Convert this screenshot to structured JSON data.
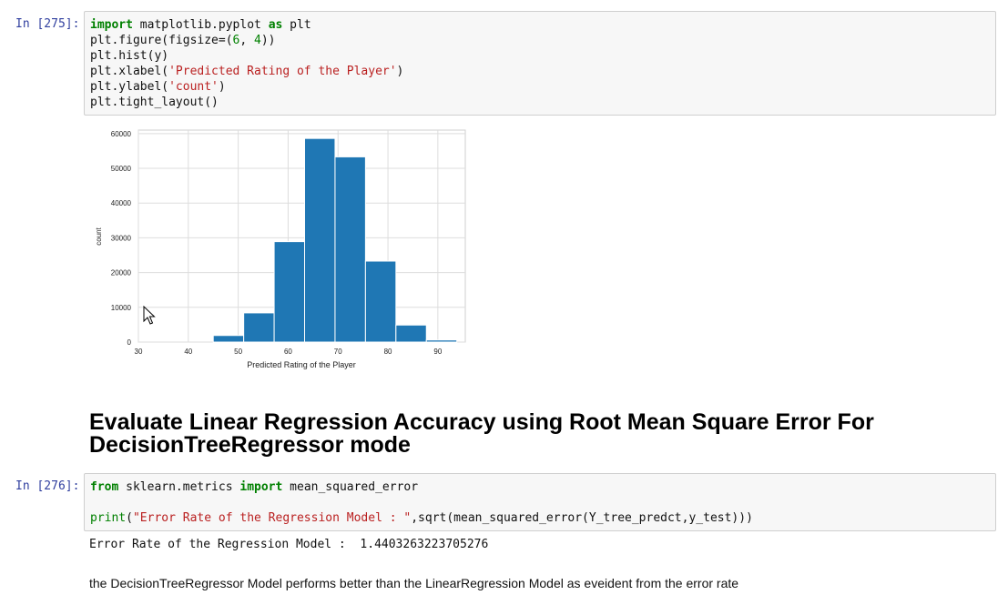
{
  "cells": {
    "cell1": {
      "prompt": "In [275]:",
      "line1": {
        "kw1": "import",
        "mid": " matplotlib.pyplot ",
        "kw2": "as",
        "rest": " plt"
      },
      "line2": {
        "pre": "plt.figure(figsize=(",
        "n1": "6",
        "sep": ", ",
        "n2": "4",
        "post": "))"
      },
      "line3": "plt.hist(y)",
      "line4": {
        "pre": "plt.xlabel(",
        "str": "'Predicted Rating of the Player'",
        "post": ")"
      },
      "line5": {
        "pre": "plt.ylabel(",
        "str": "'count'",
        "post": ")"
      },
      "line6": "plt.tight_layout()"
    },
    "heading": {
      "line1": "Evaluate Linear Regression Accuracy using Root Mean Square Error For",
      "line2": "DecisionTreeRegressor mode"
    },
    "cell2": {
      "prompt": "In [276]:",
      "line1": {
        "kw1": "from",
        "mid": " sklearn.metrics ",
        "kw2": "import",
        "rest": " mean_squared_error"
      },
      "line2": {
        "fn": "print",
        "pre": "(",
        "str": "\"Error Rate of the Regression Model : \"",
        "post": ",sqrt(mean_squared_error(Y_tree_predct,y_test)))"
      },
      "output": "Error Rate of the Regression Model :  1.4403263223705276"
    },
    "markdown": "the DecisionTreeRegressor Model performs better than the LinearRegression Model as eveident from the error rate"
  },
  "chart_data": {
    "type": "bar",
    "title": "",
    "xlabel": "Predicted Rating of the Player",
    "ylabel": "count",
    "xlim": [
      30,
      95.5
    ],
    "ylim": [
      0,
      61000
    ],
    "x_ticks": [
      30,
      40,
      50,
      60,
      70,
      80,
      90
    ],
    "y_ticks": [
      0,
      10000,
      20000,
      30000,
      40000,
      50000,
      60000
    ],
    "grid": true,
    "bar_color": "#1f77b4",
    "bins": [
      {
        "x0": 45.0,
        "x1": 51.1,
        "value": 1900
      },
      {
        "x0": 51.1,
        "x1": 57.2,
        "value": 8400
      },
      {
        "x0": 57.2,
        "x1": 63.3,
        "value": 28900
      },
      {
        "x0": 63.3,
        "x1": 69.4,
        "value": 58600
      },
      {
        "x0": 69.4,
        "x1": 75.5,
        "value": 53300
      },
      {
        "x0": 75.5,
        "x1": 81.6,
        "value": 23300
      },
      {
        "x0": 81.6,
        "x1": 87.7,
        "value": 4900
      },
      {
        "x0": 87.7,
        "x1": 93.8,
        "value": 600
      }
    ]
  }
}
